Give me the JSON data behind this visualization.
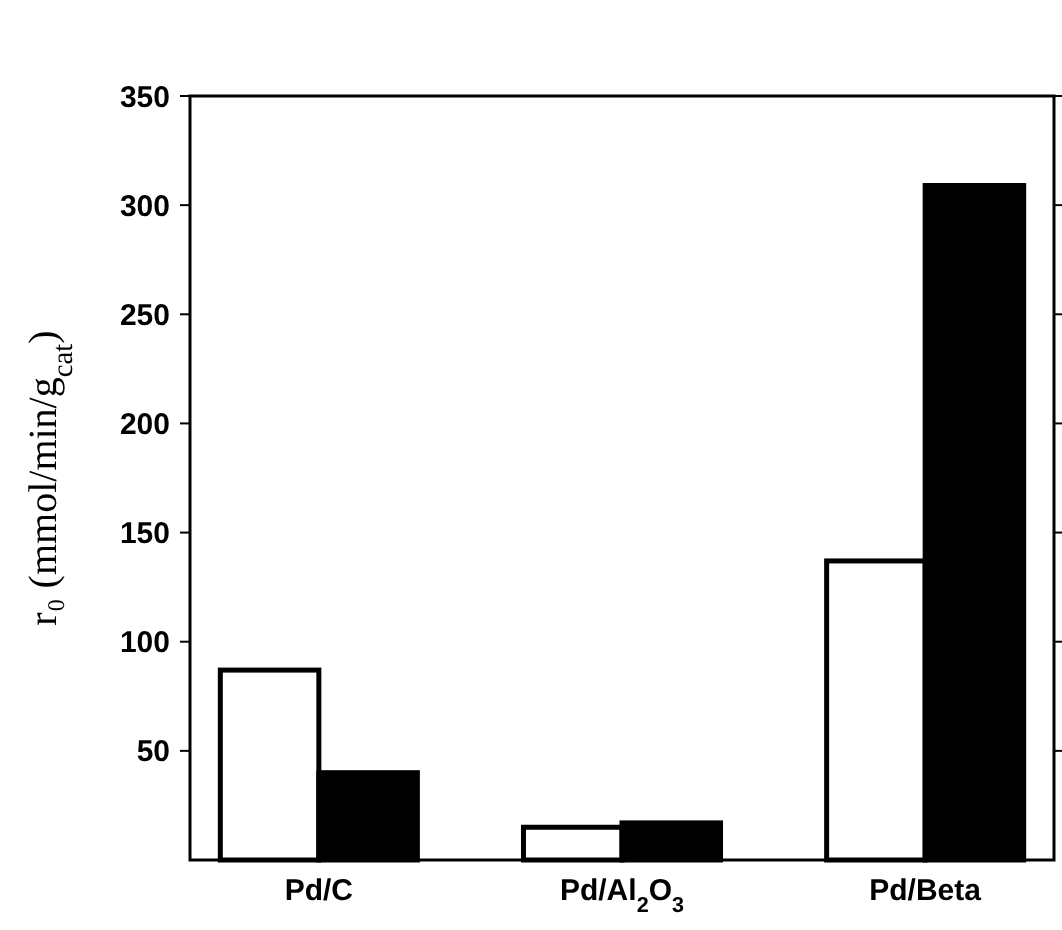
{
  "chart_data": {
    "type": "bar",
    "ylabel": "r₀ (mmol/min/g$_{cat}$)",
    "categories": [
      "Pd/C",
      "Pd/Al$_{2}$O$_{3}$",
      "Pd/Beta"
    ],
    "series": [
      {
        "color": "#ffffff",
        "values": [
          87,
          15,
          137
        ]
      },
      {
        "color": "#000000",
        "values": [
          40,
          17,
          309
        ]
      }
    ],
    "ylim": [
      0,
      350
    ],
    "yticks": [
      50,
      100,
      150,
      200,
      250,
      300,
      350
    ],
    "grid": false
  }
}
